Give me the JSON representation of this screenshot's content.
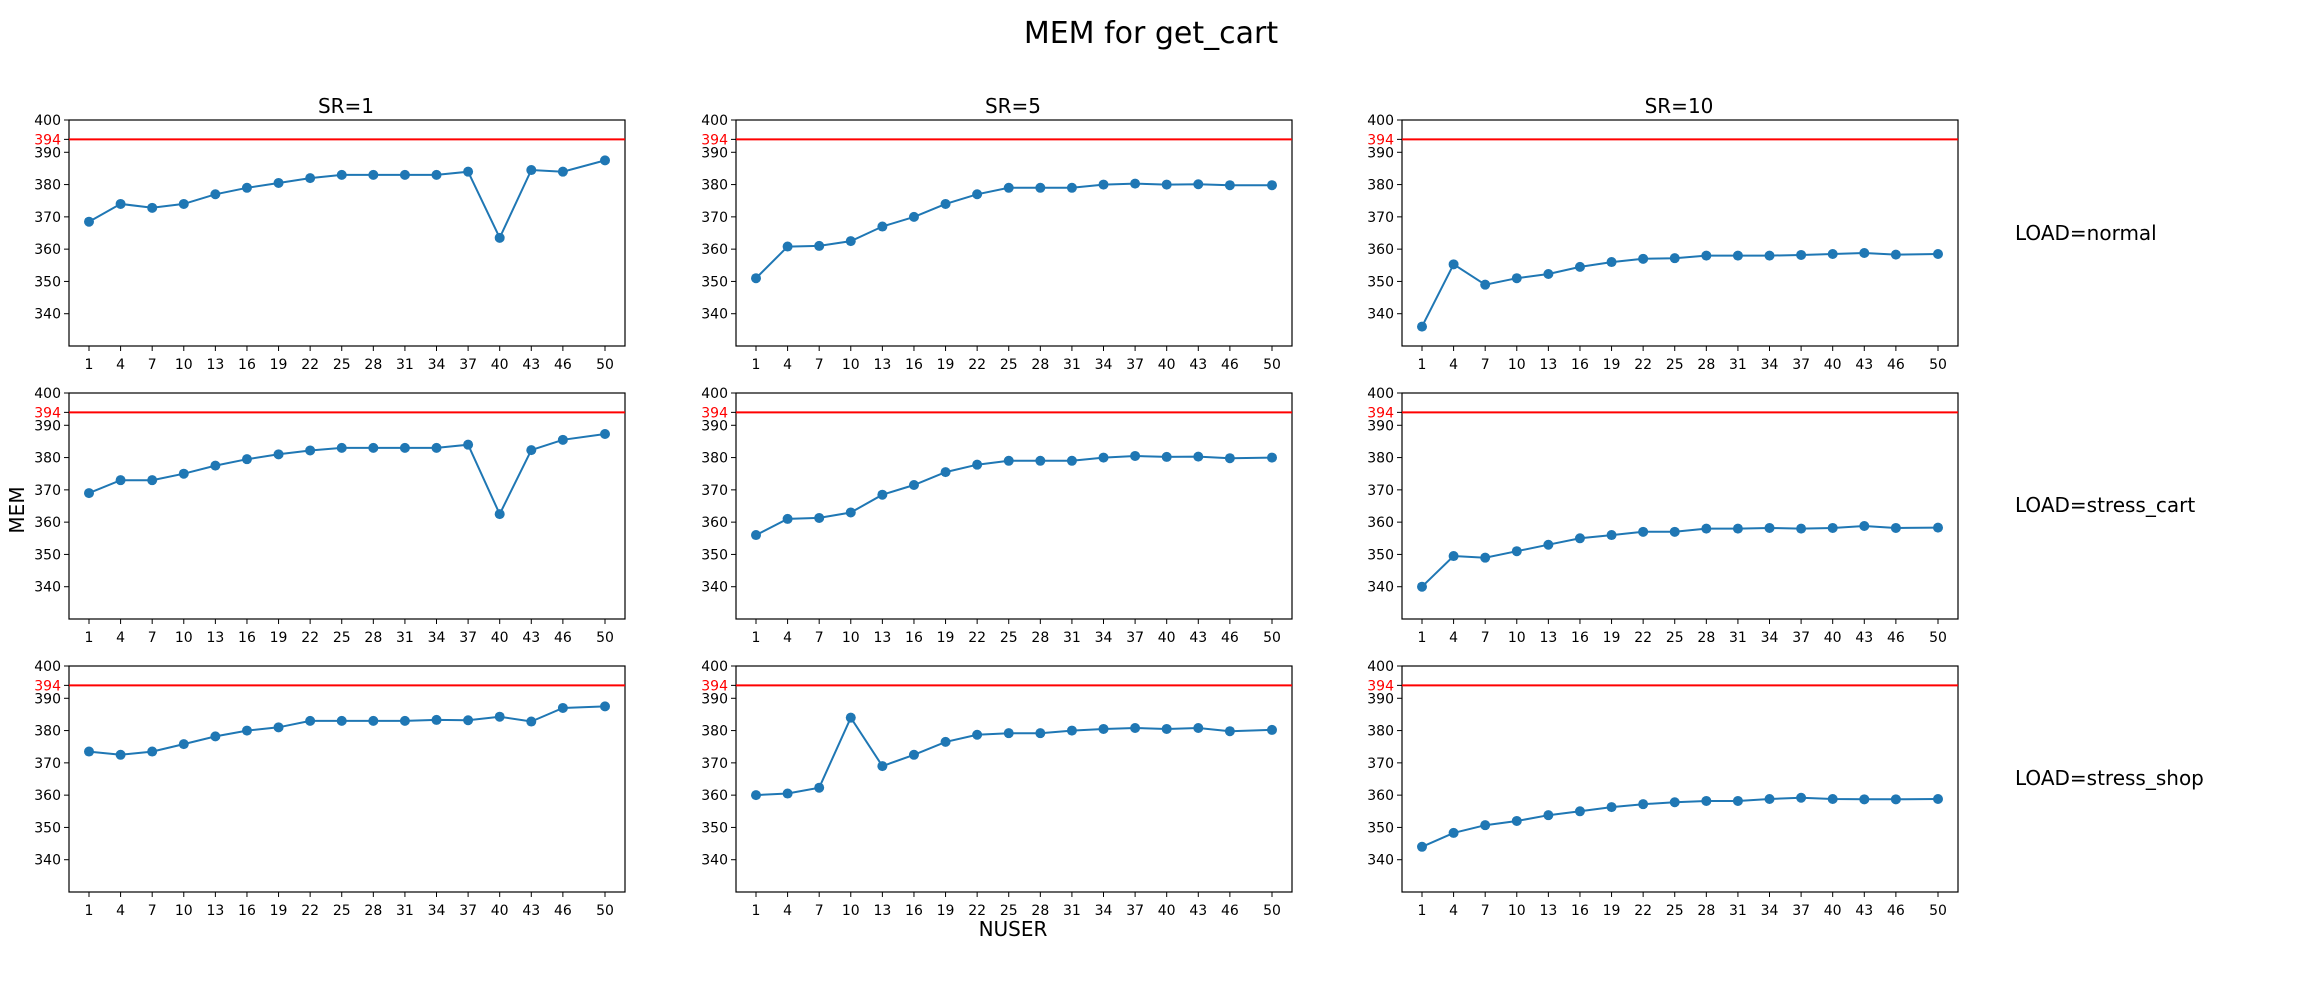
{
  "figure": {
    "title": "MEM for get_cart",
    "xlabel": "NUSER",
    "ylabel": "MEM",
    "row_labels": [
      "LOAD=normal",
      "LOAD=stress_cart",
      "LOAD=stress_shop"
    ],
    "col_titles": [
      "SR=1",
      "SR=5",
      "SR=10"
    ]
  },
  "colors": {
    "series": "#1f77b4",
    "threshold": "#ff0000"
  },
  "chart_data": [
    {
      "type": "line",
      "title": "SR=1",
      "row": "LOAD=normal",
      "ylim": [
        330,
        400
      ],
      "x": [
        1,
        4,
        7,
        10,
        13,
        16,
        19,
        22,
        25,
        28,
        31,
        34,
        37,
        40,
        43,
        46,
        50
      ],
      "y_ticks": [
        340,
        350,
        360,
        370,
        380,
        390,
        400
      ],
      "threshold": 394,
      "values": [
        368.5,
        374,
        372.8,
        374,
        377,
        379,
        380.5,
        382,
        383,
        383,
        383,
        383,
        384,
        363.5,
        384.5,
        384,
        387.5
      ]
    },
    {
      "type": "line",
      "title": "SR=5",
      "row": "LOAD=normal",
      "ylim": [
        330,
        400
      ],
      "x": [
        1,
        4,
        7,
        10,
        13,
        16,
        19,
        22,
        25,
        28,
        31,
        34,
        37,
        40,
        43,
        46,
        50
      ],
      "y_ticks": [
        340,
        350,
        360,
        370,
        380,
        390,
        400
      ],
      "threshold": 394,
      "values": [
        351,
        360.8,
        361,
        362.5,
        367,
        370,
        374,
        377,
        379,
        379,
        379,
        380,
        380.3,
        380,
        380.1,
        379.8,
        379.8
      ]
    },
    {
      "type": "line",
      "title": "SR=10",
      "row": "LOAD=normal",
      "ylim": [
        330,
        400
      ],
      "x": [
        1,
        4,
        7,
        10,
        13,
        16,
        19,
        22,
        25,
        28,
        31,
        34,
        37,
        40,
        43,
        46,
        50
      ],
      "y_ticks": [
        340,
        350,
        360,
        370,
        380,
        390,
        400
      ],
      "threshold": 394,
      "values": [
        336,
        355.3,
        349,
        351,
        352.3,
        354.5,
        356,
        357,
        357.2,
        358,
        358,
        358,
        358.2,
        358.5,
        358.8,
        358.3,
        358.5
      ]
    },
    {
      "type": "line",
      "title": "",
      "row": "LOAD=stress_cart",
      "ylim": [
        330,
        400
      ],
      "x": [
        1,
        4,
        7,
        10,
        13,
        16,
        19,
        22,
        25,
        28,
        31,
        34,
        37,
        40,
        43,
        46,
        50
      ],
      "y_ticks": [
        340,
        350,
        360,
        370,
        380,
        390,
        400
      ],
      "threshold": 394,
      "values": [
        369,
        373,
        373,
        375,
        377.5,
        379.5,
        381,
        382.2,
        383,
        383,
        383,
        383,
        384,
        362.5,
        382.3,
        385.5,
        387.3
      ]
    },
    {
      "type": "line",
      "title": "",
      "row": "LOAD=stress_cart",
      "ylim": [
        330,
        400
      ],
      "x": [
        1,
        4,
        7,
        10,
        13,
        16,
        19,
        22,
        25,
        28,
        31,
        34,
        37,
        40,
        43,
        46,
        50
      ],
      "y_ticks": [
        340,
        350,
        360,
        370,
        380,
        390,
        400
      ],
      "threshold": 394,
      "values": [
        356,
        361,
        361.3,
        363,
        368.5,
        371.5,
        375.5,
        377.8,
        379,
        379,
        379,
        380,
        380.5,
        380.2,
        380.3,
        379.8,
        380
      ]
    },
    {
      "type": "line",
      "title": "",
      "row": "LOAD=stress_cart",
      "ylim": [
        330,
        400
      ],
      "x": [
        1,
        4,
        7,
        10,
        13,
        16,
        19,
        22,
        25,
        28,
        31,
        34,
        37,
        40,
        43,
        46,
        50
      ],
      "y_ticks": [
        340,
        350,
        360,
        370,
        380,
        390,
        400
      ],
      "threshold": 394,
      "values": [
        340,
        349.5,
        349,
        351,
        353,
        355,
        356,
        357,
        357,
        358,
        358,
        358.2,
        358,
        358.2,
        358.8,
        358.2,
        358.3
      ]
    },
    {
      "type": "line",
      "title": "",
      "row": "LOAD=stress_shop",
      "ylim": [
        330,
        400
      ],
      "x": [
        1,
        4,
        7,
        10,
        13,
        16,
        19,
        22,
        25,
        28,
        31,
        34,
        37,
        40,
        43,
        46,
        50
      ],
      "y_ticks": [
        340,
        350,
        360,
        370,
        380,
        390,
        400
      ],
      "threshold": 394,
      "values": [
        373.5,
        372.5,
        373.5,
        375.8,
        378.2,
        380,
        381,
        383,
        383,
        383,
        383,
        383.3,
        383.2,
        384.3,
        382.8,
        387,
        387.5
      ]
    },
    {
      "type": "line",
      "title": "",
      "row": "LOAD=stress_shop",
      "ylim": [
        330,
        400
      ],
      "x": [
        1,
        4,
        7,
        10,
        13,
        16,
        19,
        22,
        25,
        28,
        31,
        34,
        37,
        40,
        43,
        46,
        50
      ],
      "y_ticks": [
        340,
        350,
        360,
        370,
        380,
        390,
        400
      ],
      "threshold": 394,
      "values": [
        360,
        360.5,
        362.3,
        384,
        369,
        372.5,
        376.5,
        378.7,
        379.2,
        379.2,
        380,
        380.5,
        380.8,
        380.5,
        380.8,
        379.8,
        380.2
      ]
    },
    {
      "type": "line",
      "title": "",
      "row": "LOAD=stress_shop",
      "ylim": [
        330,
        400
      ],
      "x": [
        1,
        4,
        7,
        10,
        13,
        16,
        19,
        22,
        25,
        28,
        31,
        34,
        37,
        40,
        43,
        46,
        50
      ],
      "y_ticks": [
        340,
        350,
        360,
        370,
        380,
        390,
        400
      ],
      "threshold": 394,
      "values": [
        344,
        348.3,
        350.7,
        352,
        353.8,
        355,
        356.3,
        357.2,
        357.8,
        358.2,
        358.2,
        358.8,
        359.2,
        358.8,
        358.7,
        358.7,
        358.8
      ]
    }
  ]
}
